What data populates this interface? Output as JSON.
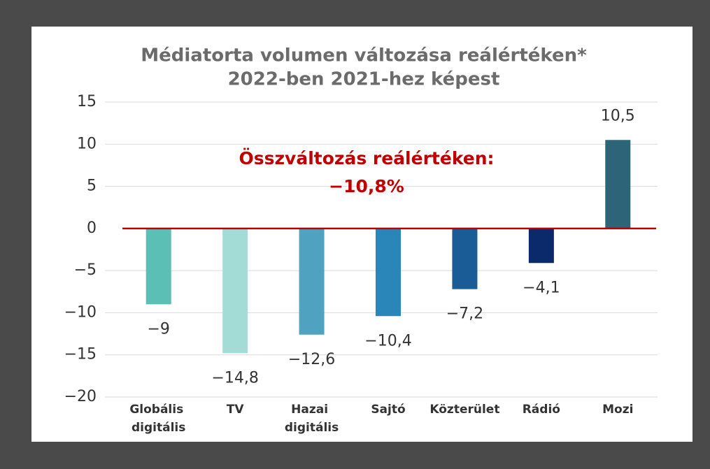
{
  "chart_data": {
    "type": "bar",
    "title": [
      "Médiatorta volumen változása reálértéken*",
      "2022-ben 2021-hez képest"
    ],
    "annotation": [
      "Összváltozás reálértéken:",
      "−10,8%"
    ],
    "categories": [
      "Globális digitális",
      "TV",
      "Hazai digitális",
      "Sajtó",
      "Közterület",
      "Rádió",
      "Mozi"
    ],
    "values": [
      -9,
      -14.8,
      -12.6,
      -10.4,
      -7.2,
      -4.1,
      10.5
    ],
    "value_labels": [
      "−9",
      "−14,8",
      "−12,6",
      "−10,4",
      "−7,2",
      "−4,1",
      "10,5"
    ],
    "colors": [
      "#5bbfb5",
      "#a3dcd6",
      "#4fa3c0",
      "#2a86b8",
      "#1a5c96",
      "#0a2a6b",
      "#2d6478"
    ],
    "ylim": [
      -20,
      15
    ],
    "yticks": [
      {
        "value": -20,
        "label": "−20"
      },
      {
        "value": -15,
        "label": "−15"
      },
      {
        "value": -10,
        "label": "−10"
      },
      {
        "value": -5,
        "label": "−5"
      },
      0,
      5,
      10,
      15
    ],
    "grid": true,
    "zero_line_color": "#c00000"
  }
}
